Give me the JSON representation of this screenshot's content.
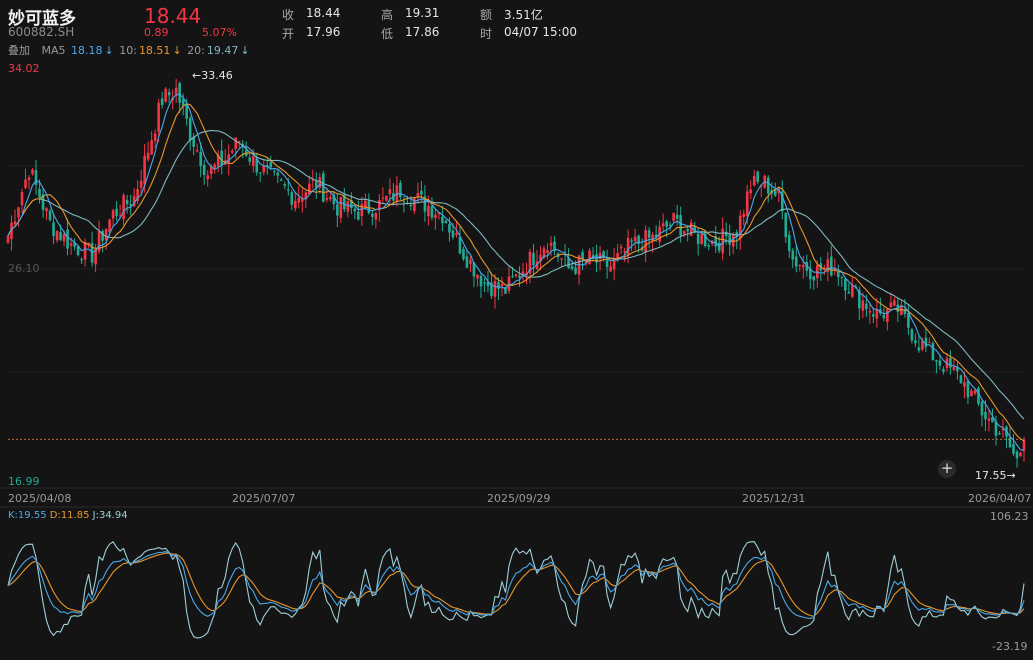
{
  "header": {
    "name": "妙可蓝多",
    "code": "600882.SH",
    "price": "18.44",
    "change": "0.89",
    "change_pct": "5.07%",
    "quotes": [
      {
        "label": "收",
        "value": "18.44"
      },
      {
        "label": "高",
        "value": "19.31"
      },
      {
        "label": "额",
        "value": "3.51亿"
      },
      {
        "label": "开",
        "value": "17.96"
      },
      {
        "label": "低",
        "value": "17.86"
      },
      {
        "label": "时",
        "value": "04/07 15:00"
      }
    ]
  },
  "ma": {
    "overlay_label": "叠加",
    "ma5": "MA5",
    "ma5_val": "18.18",
    "ma10": "10:",
    "ma10_val": "18.51",
    "ma20": "20:",
    "ma20_val": "19.47",
    "arrow": "↓"
  },
  "colors": {
    "up": "#f23645",
    "down": "#22ab94",
    "ma5": "#4aa8e8",
    "ma10": "#e8962e",
    "ma20": "#7fb8c0",
    "k": "#4aa8e8",
    "d": "#e8962e",
    "j": "#9fcfd8"
  },
  "axis": {
    "ymax_label": "34.02",
    "ymin_label": "16.99",
    "mid_label": "26.10",
    "high_marker": "33.46",
    "low_marker": "17.55",
    "dates": [
      "2025/04/08",
      "2025/07/07",
      "2025/09/29",
      "2025/12/31",
      "2026/04/07"
    ]
  },
  "kdj": {
    "k_label": "K:19.55",
    "d_label": "D:11.85",
    "j_label": "J:34.94",
    "max_label": "106.23",
    "min_label": "-23.19"
  },
  "chart_data": {
    "type": "candlestick",
    "ylim": [
      16.99,
      34.02
    ],
    "kdj_ylim": [
      -23.19,
      106.23
    ],
    "x_date_labels": [
      "2025/04/08",
      "2025/07/07",
      "2025/09/29",
      "2025/12/31",
      "2026/04/07"
    ],
    "close_anchors": [
      [
        0,
        27.0
      ],
      [
        6,
        29.8
      ],
      [
        12,
        27.5
      ],
      [
        18,
        26.6
      ],
      [
        24,
        26.2
      ],
      [
        30,
        27.9
      ],
      [
        36,
        28.6
      ],
      [
        40,
        30.6
      ],
      [
        44,
        32.7
      ],
      [
        48,
        33.1
      ],
      [
        52,
        31.3
      ],
      [
        57,
        29.6
      ],
      [
        62,
        30.2
      ],
      [
        66,
        31.0
      ],
      [
        70,
        30.1
      ],
      [
        76,
        29.3
      ],
      [
        82,
        28.6
      ],
      [
        88,
        29.2
      ],
      [
        94,
        28.2
      ],
      [
        100,
        28.0
      ],
      [
        106,
        28.3
      ],
      [
        112,
        28.9
      ],
      [
        118,
        28.4
      ],
      [
        124,
        27.9
      ],
      [
        130,
        26.3
      ],
      [
        136,
        25.0
      ],
      [
        142,
        24.7
      ],
      [
        148,
        25.8
      ],
      [
        154,
        26.8
      ],
      [
        160,
        25.6
      ],
      [
        166,
        26.0
      ],
      [
        172,
        25.7
      ],
      [
        178,
        26.6
      ],
      [
        184,
        26.9
      ],
      [
        190,
        27.6
      ],
      [
        196,
        27.0
      ],
      [
        202,
        26.7
      ],
      [
        208,
        27.2
      ],
      [
        212,
        29.1
      ],
      [
        216,
        29.2
      ],
      [
        220,
        28.6
      ],
      [
        224,
        26.0
      ],
      [
        230,
        25.5
      ],
      [
        236,
        25.7
      ],
      [
        242,
        24.5
      ],
      [
        248,
        23.7
      ],
      [
        254,
        23.9
      ],
      [
        260,
        22.5
      ],
      [
        266,
        21.7
      ],
      [
        272,
        21.0
      ],
      [
        278,
        19.6
      ],
      [
        284,
        18.6
      ],
      [
        288,
        17.55
      ],
      [
        290,
        18.44
      ]
    ],
    "kdj_series": [
      "K",
      "D",
      "J"
    ]
  }
}
